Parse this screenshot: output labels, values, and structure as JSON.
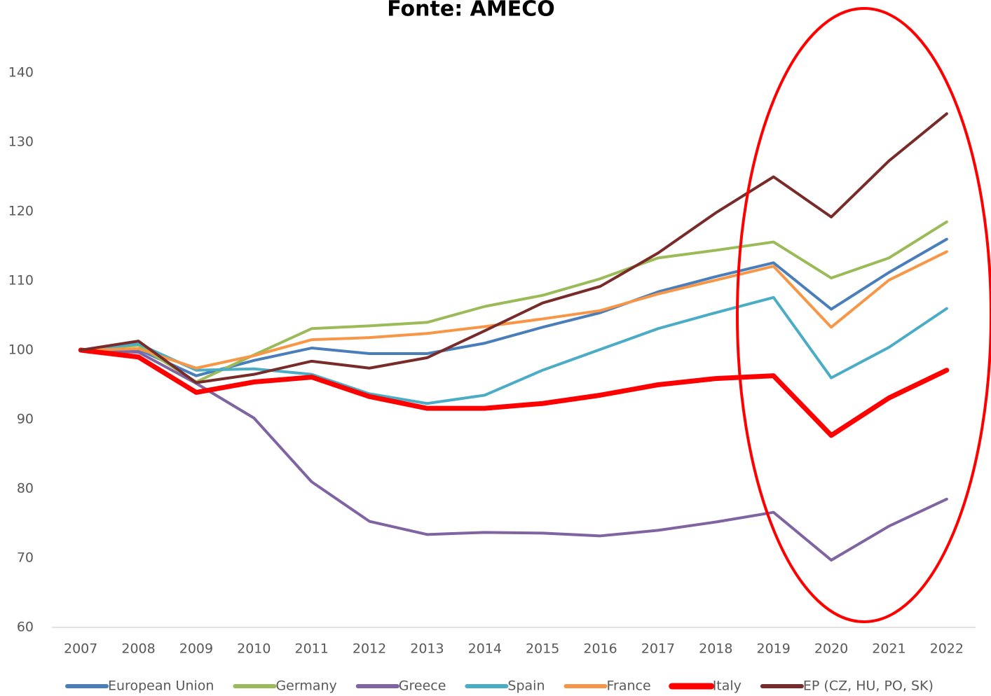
{
  "chart_data": {
    "type": "line",
    "title": "Fonte: AMECO",
    "categories": [
      "2007",
      "2008",
      "2009",
      "2010",
      "2011",
      "2012",
      "2013",
      "2014",
      "2015",
      "2016",
      "2017",
      "2018",
      "2019",
      "2020",
      "2021",
      "2022"
    ],
    "ylim": [
      60,
      140
    ],
    "yticks": [
      60,
      70,
      80,
      90,
      100,
      110,
      120,
      130,
      140
    ],
    "grid": false,
    "legend": "bottom",
    "series": [
      {
        "name": "European Union",
        "color": "#4a7ebb",
        "linewidth": 4,
        "values": [
          100,
          100.1,
          96.3,
          98.5,
          100.3,
          99.5,
          99.5,
          101,
          103.3,
          105.4,
          108.4,
          110.6,
          112.6,
          105.9,
          111.2,
          116
        ]
      },
      {
        "name": "Germany",
        "color": "#9bbb59",
        "linewidth": 4,
        "values": [
          100,
          100.7,
          95.4,
          99.3,
          103.1,
          103.5,
          104,
          106.3,
          107.9,
          110.3,
          113.3,
          114.4,
          115.6,
          110.4,
          113.3,
          118.5
        ]
      },
      {
        "name": "Greece",
        "color": "#8064a2",
        "linewidth": 4,
        "values": [
          100,
          99.7,
          95.2,
          90.2,
          81,
          75.3,
          73.4,
          73.7,
          73.6,
          73.2,
          74,
          75.2,
          76.6,
          69.7,
          74.6,
          78.5
        ]
      },
      {
        "name": "Spain",
        "color": "#4bacc6",
        "linewidth": 4,
        "values": [
          100,
          100.9,
          97.1,
          97.3,
          96.5,
          93.7,
          92.3,
          93.5,
          97.1,
          100.1,
          103.1,
          105.4,
          107.6,
          96,
          100.4,
          106
        ]
      },
      {
        "name": "France",
        "color": "#f79646",
        "linewidth": 4,
        "values": [
          100,
          100.2,
          97.4,
          99.2,
          101.5,
          101.8,
          102.4,
          103.4,
          104.5,
          105.7,
          108.1,
          110.1,
          112.1,
          103.3,
          110.1,
          114.2
        ]
      },
      {
        "name": "Italy",
        "color": "#ff0000",
        "linewidth": 7,
        "values": [
          100,
          99,
          93.9,
          95.4,
          96.1,
          93.3,
          91.6,
          91.6,
          92.3,
          93.5,
          95,
          95.9,
          96.3,
          87.7,
          93.1,
          97.1
        ]
      },
      {
        "name": "EP (CZ, HU, PO, SK)",
        "color": "#772c2a",
        "linewidth": 4,
        "values": [
          100,
          101.3,
          95.3,
          96.5,
          98.4,
          97.4,
          98.9,
          102.8,
          106.8,
          109.2,
          114,
          119.8,
          125,
          119.2,
          127.3,
          134.1
        ]
      }
    ]
  }
}
